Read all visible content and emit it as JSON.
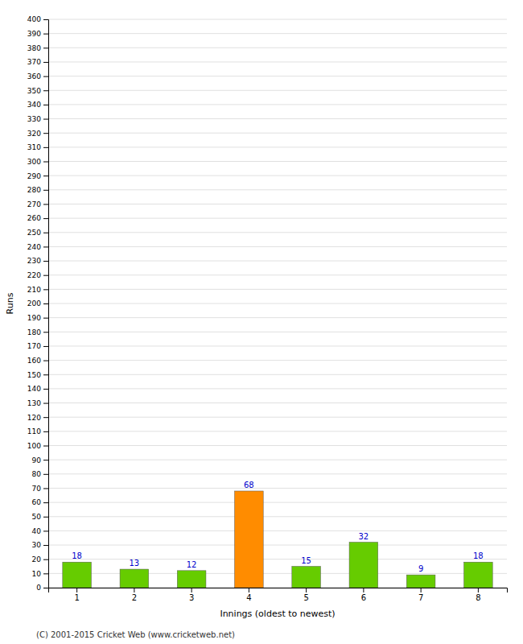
{
  "chart_data": {
    "type": "bar",
    "categories": [
      "1",
      "2",
      "3",
      "4",
      "5",
      "6",
      "7",
      "8"
    ],
    "values": [
      18,
      13,
      12,
      68,
      15,
      32,
      9,
      18
    ],
    "colors": [
      "#66cc00",
      "#66cc00",
      "#66cc00",
      "#ff8c00",
      "#66cc00",
      "#66cc00",
      "#66cc00",
      "#66cc00"
    ],
    "xlabel": "Innings (oldest to newest)",
    "ylabel": "Runs",
    "ylim": [
      0,
      400
    ],
    "yticks": [
      0,
      10,
      20,
      30,
      40,
      50,
      60,
      70,
      80,
      90,
      100,
      110,
      120,
      130,
      140,
      150,
      160,
      170,
      180,
      190,
      200,
      210,
      220,
      230,
      240,
      250,
      260,
      270,
      280,
      290,
      300,
      310,
      320,
      330,
      340,
      350,
      360,
      370,
      380,
      390,
      400
    ],
    "grid": true,
    "data_labels": true,
    "annotations": [
      "(C) 2001-2015 Cricket Web (www.cricketweb.net)"
    ]
  }
}
